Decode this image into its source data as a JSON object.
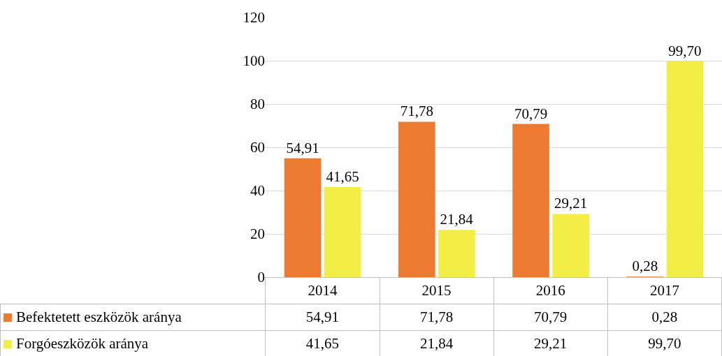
{
  "chart_data": {
    "type": "bar",
    "categories": [
      "2014",
      "2015",
      "2016",
      "2017"
    ],
    "series": [
      {
        "name": "Befektetett eszközök aránya",
        "color": "#ec7a30",
        "values": [
          54.91,
          71.78,
          70.79,
          0.28
        ],
        "value_labels": [
          "54,91",
          "71,78",
          "70,79",
          "0,28"
        ]
      },
      {
        "name": "Forgóeszközök aránya",
        "color": "#f3ee45",
        "values": [
          41.65,
          21.84,
          29.21,
          99.7
        ],
        "value_labels": [
          "41,65",
          "21,84",
          "29,21",
          "99,70"
        ]
      }
    ],
    "ylim": [
      0,
      120
    ],
    "yticks": [
      0,
      20,
      40,
      60,
      80,
      100,
      120
    ],
    "grid": "y",
    "legend": "bottom left"
  }
}
